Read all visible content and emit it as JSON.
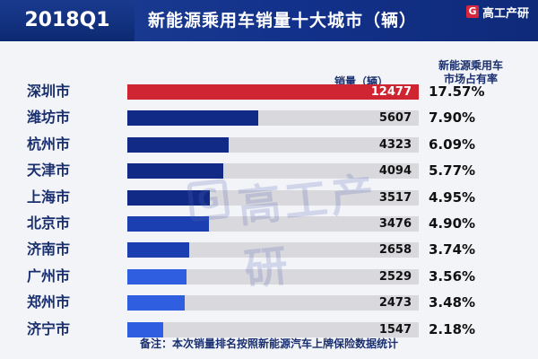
{
  "header": {
    "period": "2018Q1",
    "title": "新能源乘用车销量十大城市（辆）",
    "brand_logo": "G",
    "brand_name": "高工产研"
  },
  "columns": {
    "sales": "销量（辆）",
    "share_line1": "新能源乘用车",
    "share_line2": "市场占有率"
  },
  "watermark": {
    "logo": "G",
    "text": "高工产研"
  },
  "footnote": "备注：本次销量排名按照新能源汽车上牌保险数据统计",
  "colors": {
    "lead_bar": "#cf2431",
    "bar_dark": "#102a86",
    "bar_mid": "#1b3fb0",
    "bar_light": "#2f5fe0",
    "track": "#d8d8dd"
  },
  "chart_data": {
    "type": "bar",
    "title": "新能源乘用车销量十大城市（辆）",
    "categories": [
      "深圳市",
      "潍坊市",
      "杭州市",
      "天津市",
      "上海市",
      "北京市",
      "济南市",
      "广州市",
      "郑州市",
      "济宁市"
    ],
    "series": [
      {
        "name": "销量（辆）",
        "values": [
          12477,
          5607,
          4323,
          4094,
          3517,
          3476,
          2658,
          2529,
          2473,
          1547
        ]
      },
      {
        "name": "新能源乘用车市场占有率",
        "values": [
          "17.57%",
          "7.90%",
          "6.09%",
          "5.77%",
          "4.95%",
          "4.90%",
          "3.74%",
          "3.56%",
          "3.48%",
          "2.18%"
        ]
      }
    ],
    "xlim": [
      0,
      12477
    ],
    "grid": false,
    "legend": "none"
  }
}
